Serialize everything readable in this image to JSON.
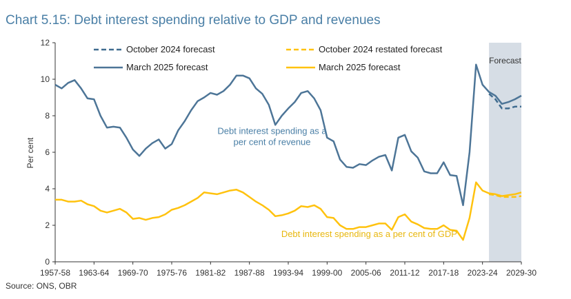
{
  "chart_data": {
    "type": "line",
    "title": "Chart 5.15: Debt interest spending relative to GDP and revenues",
    "source": "Source: ONS, OBR",
    "ylabel": "Per cent",
    "xlabel": "",
    "ylim": [
      0,
      12
    ],
    "yticks": [
      0,
      2,
      4,
      6,
      8,
      10,
      12
    ],
    "x_start": 1957,
    "x_end": 2029,
    "xtick_labels": [
      "1957-58",
      "1963-64",
      "1969-70",
      "1975-76",
      "1981-82",
      "1987-88",
      "1993-94",
      "1999-00",
      "2005-06",
      "2011-12",
      "2017-18",
      "2023-24",
      "2029-30"
    ],
    "forecast_region": {
      "label": "Forecast",
      "from": 2024,
      "to": 2029
    },
    "annotations": [
      {
        "lines": [
          "Debt interest spending as a",
          "per cent of revenue"
        ],
        "x": 1990.5,
        "y": 7.0,
        "color": "#4a7fa6"
      },
      {
        "lines": [
          "Debt interest spending as a per cent of GDP"
        ],
        "x": 2005.5,
        "y": 1.35,
        "color": "#e8b70e"
      }
    ],
    "legend": {
      "placement": "top",
      "grid": false
    },
    "series": [
      {
        "name": "October 2024 forecast",
        "color": "#3f6b8f",
        "style": "dashed",
        "width": 2.5,
        "x": [
          2024,
          2025,
          2026,
          2027,
          2028,
          2029
        ],
        "values": [
          9.2,
          8.9,
          8.4,
          8.4,
          8.5,
          8.5
        ]
      },
      {
        "name": "March 2025 forecast",
        "color": "#4d7597",
        "style": "solid",
        "width": 2.5,
        "x": [
          1957,
          1958,
          1959,
          1960,
          1961,
          1962,
          1963,
          1964,
          1965,
          1966,
          1967,
          1968,
          1969,
          1970,
          1971,
          1972,
          1973,
          1974,
          1975,
          1976,
          1977,
          1978,
          1979,
          1980,
          1981,
          1982,
          1983,
          1984,
          1985,
          1986,
          1987,
          1988,
          1989,
          1990,
          1991,
          1992,
          1993,
          1994,
          1995,
          1996,
          1997,
          1998,
          1999,
          2000,
          2001,
          2002,
          2003,
          2004,
          2005,
          2006,
          2007,
          2008,
          2009,
          2010,
          2011,
          2012,
          2013,
          2014,
          2015,
          2016,
          2017,
          2018,
          2019,
          2020,
          2021,
          2022,
          2023,
          2024,
          2025,
          2026,
          2027,
          2028,
          2029
        ],
        "values": [
          9.7,
          9.5,
          9.8,
          9.95,
          9.5,
          8.95,
          8.9,
          8.0,
          7.35,
          7.4,
          7.35,
          6.8,
          6.15,
          5.8,
          6.2,
          6.5,
          6.7,
          6.2,
          6.45,
          7.2,
          7.7,
          8.3,
          8.8,
          9.0,
          9.25,
          9.15,
          9.35,
          9.7,
          10.2,
          10.2,
          10.05,
          9.5,
          9.2,
          8.6,
          7.5,
          8.0,
          8.4,
          8.75,
          9.25,
          9.35,
          8.95,
          8.3,
          6.8,
          6.6,
          5.6,
          5.2,
          5.15,
          5.35,
          5.3,
          5.55,
          5.75,
          5.85,
          5.0,
          6.8,
          6.95,
          6.05,
          5.7,
          4.95,
          4.85,
          4.85,
          5.45,
          4.75,
          4.7,
          3.1,
          6.0,
          10.8,
          9.7,
          9.3,
          9.1,
          8.65,
          8.75,
          8.9,
          9.1
        ]
      },
      {
        "name": "October 2024 restated forecast",
        "color": "#ffc20e",
        "style": "dashed",
        "width": 2.5,
        "x": [
          2024,
          2025,
          2026,
          2027,
          2028,
          2029
        ],
        "values": [
          3.7,
          3.65,
          3.55,
          3.55,
          3.55,
          3.6
        ]
      },
      {
        "name": "March 2025 forecast",
        "color": "#ffc20e",
        "style": "solid",
        "width": 2.5,
        "x": [
          1957,
          1958,
          1959,
          1960,
          1961,
          1962,
          1963,
          1964,
          1965,
          1966,
          1967,
          1968,
          1969,
          1970,
          1971,
          1972,
          1973,
          1974,
          1975,
          1976,
          1977,
          1978,
          1979,
          1980,
          1981,
          1982,
          1983,
          1984,
          1985,
          1986,
          1987,
          1988,
          1989,
          1990,
          1991,
          1992,
          1993,
          1994,
          1995,
          1996,
          1997,
          1998,
          1999,
          2000,
          2001,
          2002,
          2003,
          2004,
          2005,
          2006,
          2007,
          2008,
          2009,
          2010,
          2011,
          2012,
          2013,
          2014,
          2015,
          2016,
          2017,
          2018,
          2019,
          2020,
          2021,
          2022,
          2023,
          2024,
          2025,
          2026,
          2027,
          2028,
          2029
        ],
        "values": [
          3.4,
          3.4,
          3.3,
          3.3,
          3.35,
          3.15,
          3.05,
          2.8,
          2.7,
          2.8,
          2.9,
          2.7,
          2.35,
          2.4,
          2.3,
          2.4,
          2.45,
          2.6,
          2.85,
          2.95,
          3.1,
          3.3,
          3.5,
          3.8,
          3.75,
          3.7,
          3.8,
          3.9,
          3.95,
          3.8,
          3.55,
          3.3,
          3.1,
          2.85,
          2.5,
          2.55,
          2.65,
          2.8,
          3.05,
          3.0,
          3.1,
          2.9,
          2.45,
          2.4,
          2.0,
          1.8,
          1.8,
          1.9,
          1.9,
          2.0,
          2.1,
          2.1,
          1.75,
          2.45,
          2.6,
          2.2,
          2.05,
          1.85,
          1.8,
          1.8,
          2.0,
          1.75,
          1.7,
          1.2,
          2.4,
          4.35,
          3.9,
          3.75,
          3.7,
          3.6,
          3.65,
          3.7,
          3.8
        ]
      }
    ]
  }
}
